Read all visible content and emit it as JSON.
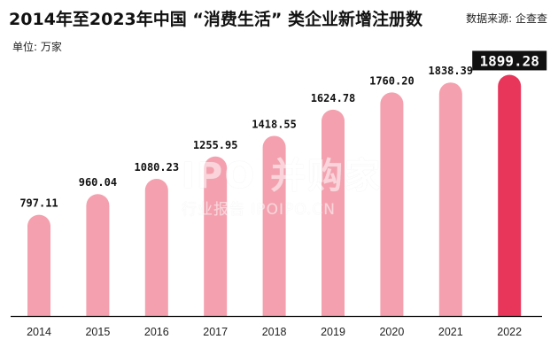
{
  "header": {
    "title": "2014年至2023年中国 “消费生活” 类企业新增注册数",
    "source": "数据来源: 企查查",
    "unit": "单位: 万家"
  },
  "watermark": {
    "logo": "IPO 并购家",
    "sub": "行业报告 IPOIPO.CN"
  },
  "colors": {
    "bar": "#f4a0ae",
    "highlight": "#e8365b",
    "highlight_label_bg": "#111111",
    "highlight_label_fg": "#ffffff",
    "axis": "#111111"
  },
  "chart_data": {
    "type": "bar",
    "categories": [
      "2014",
      "2015",
      "2016",
      "2017",
      "2018",
      "2019",
      "2020",
      "2021",
      "2022"
    ],
    "values": [
      797.11,
      960.04,
      1080.23,
      1255.95,
      1418.55,
      1624.78,
      1760.2,
      1838.39,
      1899.28
    ],
    "value_labels": [
      "797.11",
      "960.04",
      "1080.23",
      "1255.95",
      "1418.55",
      "1624.78",
      "1760.20",
      "1838.39",
      "1899.28"
    ],
    "highlight_index": 8,
    "ylim": [
      0,
      1950
    ],
    "grid": false,
    "legend": "none"
  }
}
